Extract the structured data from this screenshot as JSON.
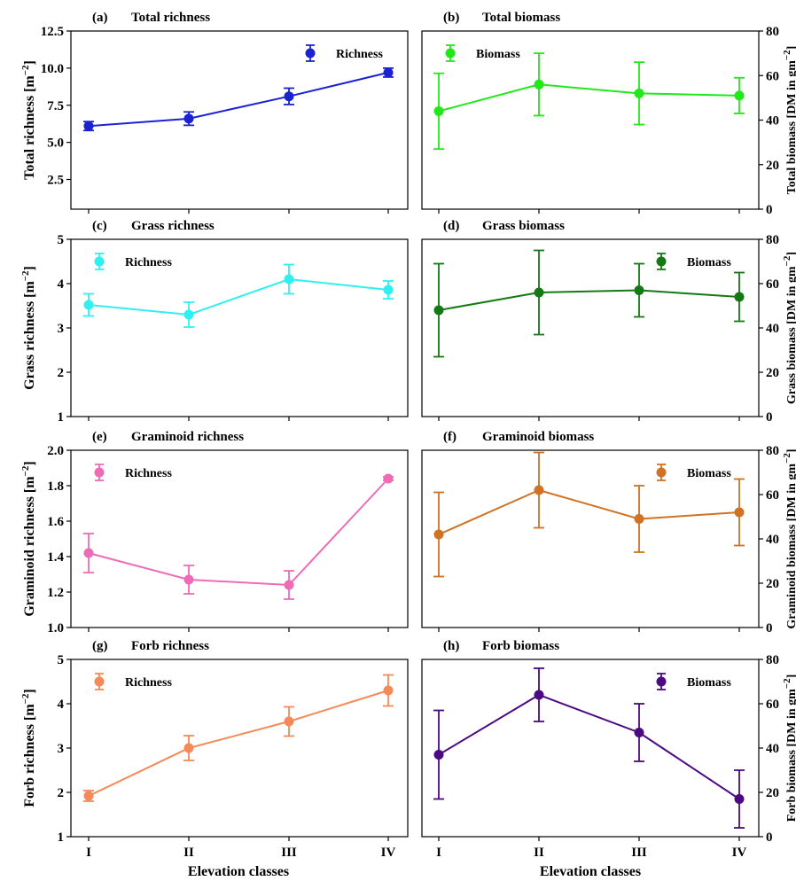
{
  "xlabel_common": "Elevation classes",
  "chart_data": [
    {
      "id": "a",
      "type": "line",
      "title": "(a)   Total richness",
      "categories": [
        "I",
        "II",
        "III",
        "IV"
      ],
      "ylabel": "Total richness [m⁻²]",
      "ylim": [
        0.5,
        12.5
      ],
      "yticks": [
        2.5,
        5.0,
        7.5,
        10.0,
        12.5
      ],
      "ytick_labels": [
        "2.5",
        "5.0",
        "7.5",
        "10.0",
        "12.5"
      ],
      "yaxis_side": "left",
      "legend_position": "top-right",
      "series": [
        {
          "name": "Richness",
          "color": "#1a22d4",
          "values": [
            6.1,
            6.6,
            8.1,
            9.7
          ],
          "err": [
            0.3,
            0.45,
            0.55,
            0.3
          ]
        }
      ]
    },
    {
      "id": "b",
      "type": "line",
      "title": "(b)   Total biomass",
      "categories": [
        "I",
        "II",
        "III",
        "IV"
      ],
      "ylabel": "Total biomass [DM in gm⁻²]",
      "ylim": [
        0,
        80
      ],
      "yticks": [
        0,
        20,
        40,
        60,
        80
      ],
      "ytick_labels": [
        "0",
        "20",
        "40",
        "60",
        "80"
      ],
      "yaxis_side": "right",
      "legend_position": "top-left",
      "series": [
        {
          "name": "Biomass",
          "color": "#22e81a",
          "values": [
            44,
            56,
            52,
            51
          ],
          "err": [
            17,
            14,
            14,
            8
          ]
        }
      ]
    },
    {
      "id": "c",
      "type": "line",
      "title": "(c)   Grass richness",
      "categories": [
        "I",
        "II",
        "III",
        "IV"
      ],
      "ylabel": "Grass richness [m⁻²]",
      "ylim": [
        1,
        5
      ],
      "yticks": [
        1,
        2,
        3,
        4,
        5
      ],
      "ytick_labels": [
        "1",
        "2",
        "3",
        "4",
        "5"
      ],
      "yaxis_side": "left",
      "legend_position": "top-left",
      "series": [
        {
          "name": "Richness",
          "color": "#2ff0f0",
          "values": [
            3.52,
            3.3,
            4.1,
            3.86
          ],
          "err": [
            0.25,
            0.28,
            0.33,
            0.2
          ]
        }
      ]
    },
    {
      "id": "d",
      "type": "line",
      "title": "(d)   Grass biomass",
      "categories": [
        "I",
        "II",
        "III",
        "IV"
      ],
      "ylabel": "Grass biomass [DM in gm⁻²]",
      "ylim": [
        0,
        80
      ],
      "yticks": [
        0,
        20,
        40,
        60,
        80
      ],
      "ytick_labels": [
        "0",
        "20",
        "40",
        "60",
        "80"
      ],
      "yaxis_side": "right",
      "legend_position": "top-right",
      "series": [
        {
          "name": "Biomass",
          "color": "#137a13",
          "values": [
            48,
            56,
            57,
            54
          ],
          "err": [
            21,
            19,
            12,
            11
          ]
        }
      ]
    },
    {
      "id": "e",
      "type": "line",
      "title": "(e)   Graminoid richness",
      "categories": [
        "I",
        "II",
        "III",
        "IV"
      ],
      "ylabel": "Graminoid richness [m⁻²]",
      "ylim": [
        1.0,
        2.0
      ],
      "yticks": [
        1.0,
        1.2,
        1.4,
        1.6,
        1.8,
        2.0
      ],
      "ytick_labels": [
        "1.0",
        "1.2",
        "1.4",
        "1.6",
        "1.8",
        "2.0"
      ],
      "yaxis_side": "left",
      "legend_position": "top-left",
      "series": [
        {
          "name": "Richness",
          "color": "#ef6bb5",
          "values": [
            1.42,
            1.27,
            1.24,
            1.84
          ],
          "err": [
            0.11,
            0.08,
            0.08,
            0.01
          ]
        }
      ]
    },
    {
      "id": "f",
      "type": "line",
      "title": "(f)   Graminoid biomass",
      "categories": [
        "I",
        "II",
        "III",
        "IV"
      ],
      "ylabel": "Graminoid biomass [DM in gm⁻²]",
      "ylim": [
        0,
        80
      ],
      "yticks": [
        0,
        20,
        40,
        60,
        80
      ],
      "ytick_labels": [
        "0",
        "20",
        "40",
        "60",
        "80"
      ],
      "yaxis_side": "right",
      "legend_position": "top-right",
      "series": [
        {
          "name": "Biomass",
          "color": "#cf7224",
          "values": [
            42,
            62,
            49,
            52
          ],
          "err": [
            19,
            17,
            15,
            15
          ]
        }
      ]
    },
    {
      "id": "g",
      "type": "line",
      "title": "(g)   Forb richness",
      "categories": [
        "I",
        "II",
        "III",
        "IV"
      ],
      "ylabel": "Forb richness [m⁻²]",
      "ylim": [
        1,
        5
      ],
      "yticks": [
        1,
        2,
        3,
        4,
        5
      ],
      "ytick_labels": [
        "1",
        "2",
        "3",
        "4",
        "5"
      ],
      "yaxis_side": "left",
      "legend_position": "top-left",
      "series": [
        {
          "name": "Richness",
          "color": "#f58a58",
          "values": [
            1.92,
            3.0,
            3.6,
            4.3
          ],
          "err": [
            0.12,
            0.28,
            0.33,
            0.35
          ]
        }
      ]
    },
    {
      "id": "h",
      "type": "line",
      "title": "(h)   Forb biomass",
      "categories": [
        "I",
        "II",
        "III",
        "IV"
      ],
      "ylabel": "Forb biomass [DM in gm⁻²]",
      "ylim": [
        0,
        80
      ],
      "yticks": [
        0,
        20,
        40,
        60,
        80
      ],
      "ytick_labels": [
        "0",
        "20",
        "40",
        "60",
        "80"
      ],
      "yaxis_side": "right",
      "legend_position": "top-right",
      "series": [
        {
          "name": "Biomass",
          "color": "#4b0a82",
          "values": [
            37,
            64,
            47,
            17
          ],
          "err": [
            20,
            12,
            13,
            13
          ]
        }
      ]
    }
  ]
}
